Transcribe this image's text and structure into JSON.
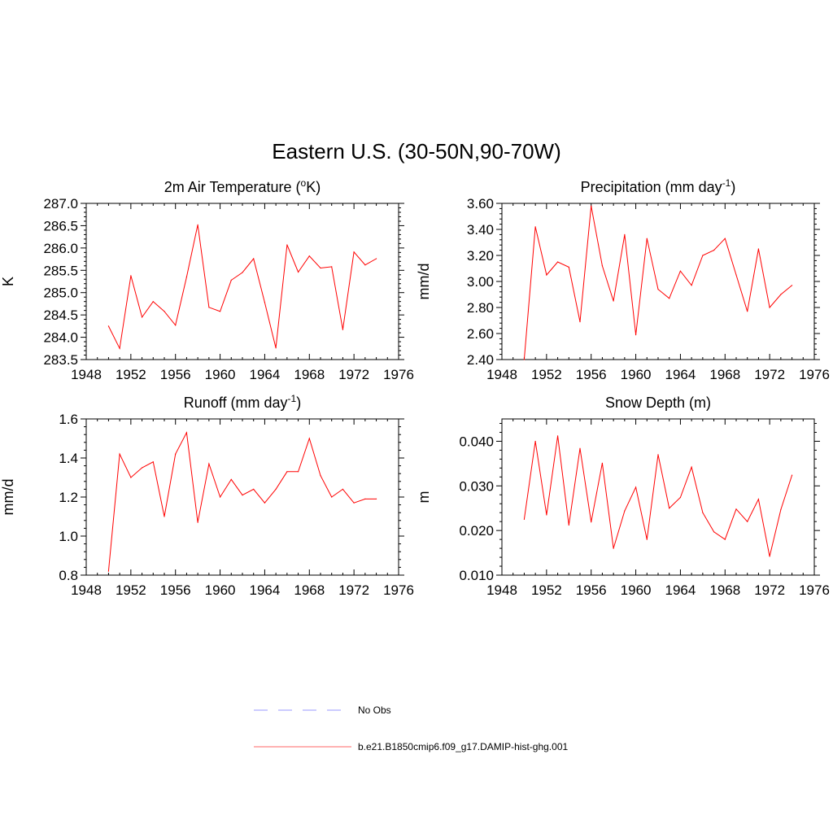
{
  "figure": {
    "title": "Eastern U.S. (30-50N,90-70W)"
  },
  "colors": {
    "model_line": "#ff0000",
    "obs_line": "#9999ff",
    "axis": "#000000",
    "background": "#ffffff"
  },
  "legend": {
    "placement": "bottom-center",
    "entries": [
      {
        "label": "No Obs",
        "style": "dashed",
        "color": "#9999ff"
      },
      {
        "label": "b.e21.B1850cmip6.f09_g17.DAMIP-hist-ghg.001",
        "style": "solid",
        "color": "#ff6666"
      }
    ]
  },
  "chart_data": [
    {
      "type": "line",
      "title_text": "2m Air Temperature (",
      "title_super": "o",
      "title_tail": "K)",
      "ylabel": "K",
      "xlim": [
        1948,
        1976
      ],
      "ylim": [
        283.5,
        287.0
      ],
      "xticks": [
        1948,
        1952,
        1956,
        1960,
        1964,
        1968,
        1972,
        1976
      ],
      "xtick_labels": [
        "1948",
        "1952",
        "1956",
        "1960",
        "1964",
        "1968",
        "1972",
        "1976"
      ],
      "yticks": [
        283.5,
        284.0,
        284.5,
        285.0,
        285.5,
        286.0,
        286.5,
        287.0
      ],
      "ytick_labels": [
        "283.5",
        "284.0",
        "284.5",
        "285.0",
        "285.5",
        "286.0",
        "286.5",
        "287.0"
      ],
      "grid": false,
      "x": [
        1950,
        1951,
        1952,
        1953,
        1954,
        1955,
        1956,
        1957,
        1958,
        1959,
        1960,
        1961,
        1962,
        1963,
        1964,
        1965,
        1966,
        1967,
        1968,
        1969,
        1970,
        1971,
        1972,
        1973,
        1974
      ],
      "series": [
        {
          "values": [
            284.25,
            283.75,
            285.38,
            284.45,
            284.8,
            284.58,
            284.27,
            285.35,
            286.52,
            284.67,
            284.58,
            285.28,
            285.45,
            285.76,
            284.78,
            283.76,
            286.07,
            285.46,
            285.82,
            285.55,
            285.58,
            284.17,
            285.91,
            285.62,
            285.76
          ]
        }
      ]
    },
    {
      "type": "line",
      "title_text": "Precipitation (mm day",
      "title_super": "-1",
      "title_tail": ")",
      "ylabel": "mm/d",
      "xlim": [
        1948,
        1976
      ],
      "ylim": [
        2.4,
        3.6
      ],
      "xticks": [
        1948,
        1952,
        1956,
        1960,
        1964,
        1968,
        1972,
        1976
      ],
      "xtick_labels": [
        "1948",
        "1952",
        "1956",
        "1960",
        "1964",
        "1968",
        "1972",
        "1976"
      ],
      "yticks": [
        2.4,
        2.6,
        2.8,
        3.0,
        3.2,
        3.4,
        3.6
      ],
      "ytick_labels": [
        "2.40",
        "2.60",
        "2.80",
        "3.00",
        "3.20",
        "3.40",
        "3.60"
      ],
      "grid": false,
      "x": [
        1950,
        1951,
        1952,
        1953,
        1954,
        1955,
        1956,
        1957,
        1958,
        1959,
        1960,
        1961,
        1962,
        1963,
        1964,
        1965,
        1966,
        1967,
        1968,
        1969,
        1970,
        1971,
        1972,
        1973,
        1974
      ],
      "series": [
        {
          "values": [
            2.4,
            3.42,
            3.05,
            3.15,
            3.11,
            2.69,
            3.58,
            3.12,
            2.85,
            3.36,
            2.59,
            3.33,
            2.94,
            2.87,
            3.08,
            2.97,
            3.2,
            3.24,
            3.33,
            3.05,
            2.77,
            3.25,
            2.8,
            2.9,
            2.97
          ]
        }
      ]
    },
    {
      "type": "line",
      "title_text": "Runoff (mm day",
      "title_super": "-1",
      "title_tail": ")",
      "ylabel": "mm/d",
      "xlim": [
        1948,
        1976
      ],
      "ylim": [
        0.8,
        1.6
      ],
      "xticks": [
        1948,
        1952,
        1956,
        1960,
        1964,
        1968,
        1972,
        1976
      ],
      "xtick_labels": [
        "1948",
        "1952",
        "1956",
        "1960",
        "1964",
        "1968",
        "1972",
        "1976"
      ],
      "yticks": [
        0.8,
        1.0,
        1.2,
        1.4,
        1.6
      ],
      "ytick_labels": [
        "0.8",
        "1.0",
        "1.2",
        "1.4",
        "1.6"
      ],
      "grid": false,
      "x": [
        1950,
        1951,
        1952,
        1953,
        1954,
        1955,
        1956,
        1957,
        1958,
        1959,
        1960,
        1961,
        1962,
        1963,
        1964,
        1965,
        1966,
        1967,
        1968,
        1969,
        1970,
        1971,
        1972,
        1973,
        1974
      ],
      "series": [
        {
          "values": [
            0.82,
            1.42,
            1.3,
            1.35,
            1.38,
            1.1,
            1.42,
            1.53,
            1.07,
            1.37,
            1.2,
            1.29,
            1.21,
            1.24,
            1.17,
            1.24,
            1.33,
            1.33,
            1.5,
            1.31,
            1.2,
            1.24,
            1.17,
            1.19,
            1.19
          ]
        }
      ]
    },
    {
      "type": "line",
      "title_text": "Snow Depth (m)",
      "title_super": "",
      "title_tail": "",
      "ylabel": "m",
      "xlim": [
        1948,
        1976
      ],
      "ylim": [
        0.01,
        0.045
      ],
      "xticks": [
        1948,
        1952,
        1956,
        1960,
        1964,
        1968,
        1972,
        1976
      ],
      "xtick_labels": [
        "1948",
        "1952",
        "1956",
        "1960",
        "1964",
        "1968",
        "1972",
        "1976"
      ],
      "yticks": [
        0.01,
        0.02,
        0.03,
        0.04
      ],
      "ytick_labels": [
        "0.010",
        "0.020",
        "0.030",
        "0.040"
      ],
      "grid": false,
      "x": [
        1950,
        1951,
        1952,
        1953,
        1954,
        1955,
        1956,
        1957,
        1958,
        1959,
        1960,
        1961,
        1962,
        1963,
        1964,
        1965,
        1966,
        1967,
        1968,
        1969,
        1970,
        1971,
        1972,
        1973,
        1974
      ],
      "series": [
        {
          "values": [
            0.0225,
            0.04,
            0.0235,
            0.0412,
            0.0212,
            0.0384,
            0.0219,
            0.0351,
            0.016,
            0.0244,
            0.0297,
            0.018,
            0.037,
            0.025,
            0.0274,
            0.0342,
            0.024,
            0.0197,
            0.018,
            0.0248,
            0.022,
            0.027,
            0.0142,
            0.0247,
            0.0324
          ]
        }
      ]
    }
  ]
}
